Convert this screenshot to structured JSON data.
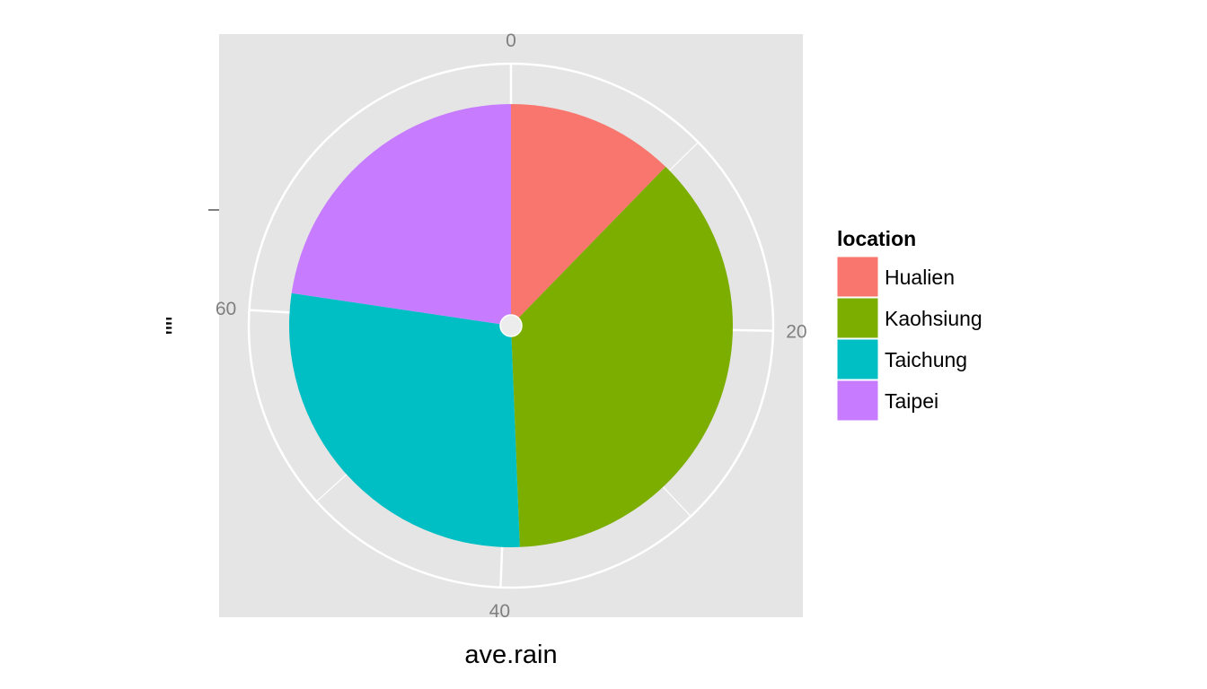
{
  "chart_data": {
    "type": "pie",
    "coord": "polar",
    "xlabel": "ave.rain",
    "ylabel": "\"\"",
    "theta_ticks": [
      0,
      20,
      40,
      60
    ],
    "theta_range": [
      0,
      79
    ],
    "legend": {
      "title": "location",
      "position": "right"
    },
    "categories": [
      "Hualien",
      "Kaohsiung",
      "Taichung",
      "Taipei"
    ],
    "values": [
      9.7,
      29.3,
      22.1,
      17.9
    ],
    "colors": [
      "#F8766D",
      "#7CAE00",
      "#00BFC4",
      "#C77CFF"
    ],
    "panel_background": "#E5E5E5",
    "grid": true
  }
}
